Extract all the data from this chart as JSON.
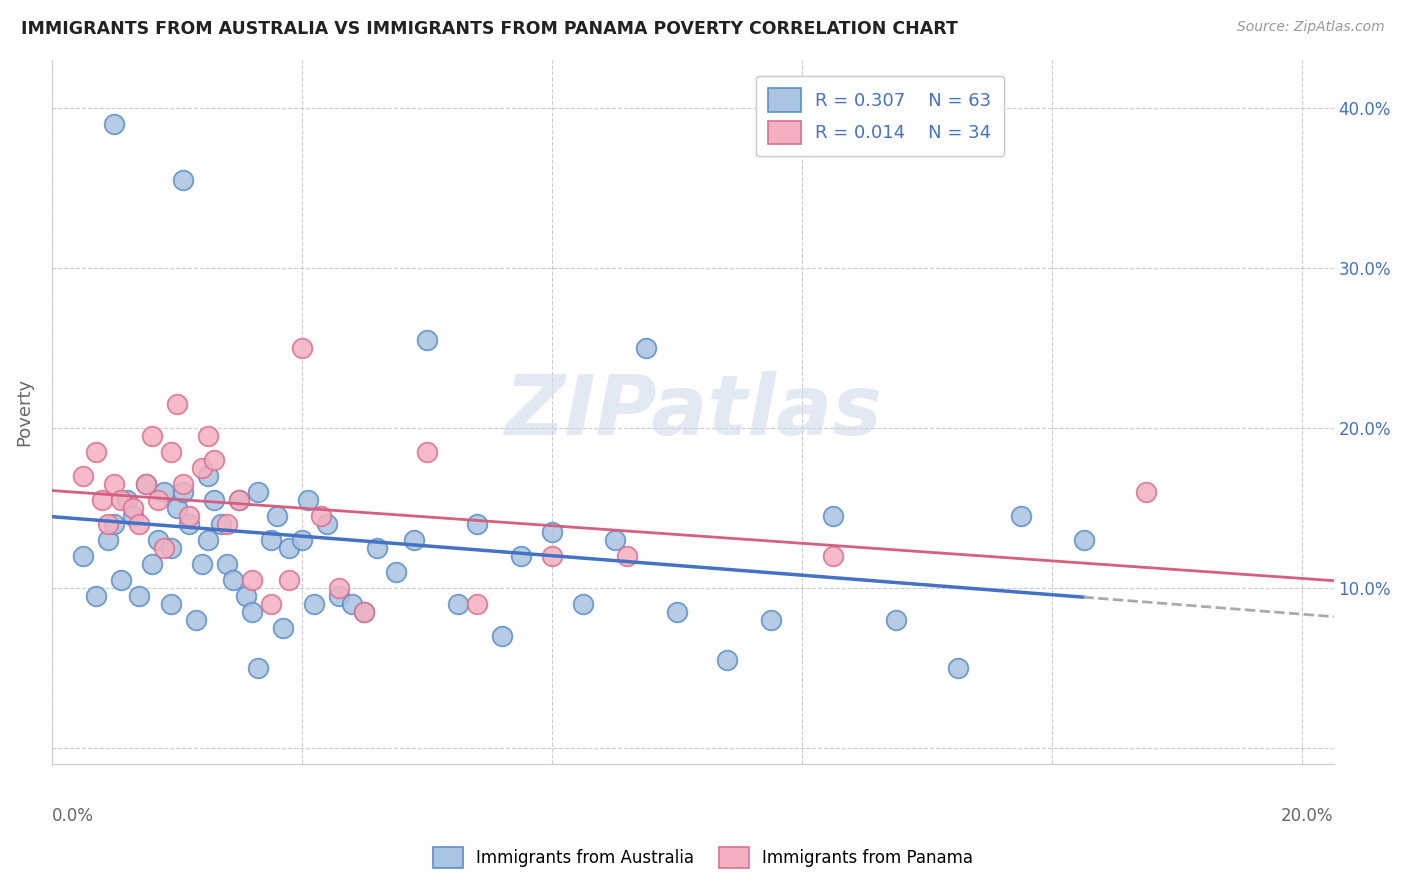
{
  "title": "IMMIGRANTS FROM AUSTRALIA VS IMMIGRANTS FROM PANAMA POVERTY CORRELATION CHART",
  "source": "Source: ZipAtlas.com",
  "ylabel": "Poverty",
  "xlim": [
    0.0,
    0.205
  ],
  "ylim": [
    -0.01,
    0.43
  ],
  "ytick_vals": [
    0.0,
    0.1,
    0.2,
    0.3,
    0.4
  ],
  "ytick_labels_right": [
    "",
    "10.0%",
    "20.0%",
    "30.0%",
    "40.0%"
  ],
  "xtick_vals": [
    0.0,
    0.04,
    0.08,
    0.12,
    0.16,
    0.2
  ],
  "color_australia": "#a8c4e0",
  "color_panama": "#f4b0c0",
  "edge_australia": "#5b8fc9",
  "edge_panama": "#d97090",
  "line_australia": "#4472c4",
  "line_panama": "#d46080",
  "line_ext_color": "#aaaaaa",
  "watermark": "ZIPatlas",
  "aus_x": [
    0.005,
    0.007,
    0.009,
    0.01,
    0.011,
    0.012,
    0.013,
    0.014,
    0.015,
    0.016,
    0.017,
    0.018,
    0.019,
    0.019,
    0.02,
    0.021,
    0.022,
    0.023,
    0.024,
    0.025,
    0.025,
    0.026,
    0.027,
    0.028,
    0.029,
    0.03,
    0.031,
    0.032,
    0.033,
    0.035,
    0.036,
    0.037,
    0.038,
    0.04,
    0.041,
    0.042,
    0.044,
    0.046,
    0.048,
    0.05,
    0.052,
    0.055,
    0.058,
    0.06,
    0.065,
    0.068,
    0.072,
    0.075,
    0.08,
    0.085,
    0.09,
    0.095,
    0.1,
    0.108,
    0.115,
    0.125,
    0.135,
    0.145,
    0.155,
    0.165,
    0.01,
    0.021,
    0.033
  ],
  "aus_y": [
    0.12,
    0.095,
    0.13,
    0.14,
    0.105,
    0.155,
    0.145,
    0.095,
    0.165,
    0.115,
    0.13,
    0.16,
    0.125,
    0.09,
    0.15,
    0.16,
    0.14,
    0.08,
    0.115,
    0.13,
    0.17,
    0.155,
    0.14,
    0.115,
    0.105,
    0.155,
    0.095,
    0.085,
    0.16,
    0.13,
    0.145,
    0.075,
    0.125,
    0.13,
    0.155,
    0.09,
    0.14,
    0.095,
    0.09,
    0.085,
    0.125,
    0.11,
    0.13,
    0.255,
    0.09,
    0.14,
    0.07,
    0.12,
    0.135,
    0.09,
    0.13,
    0.25,
    0.085,
    0.055,
    0.08,
    0.145,
    0.08,
    0.05,
    0.145,
    0.13,
    0.39,
    0.355,
    0.05
  ],
  "pan_x": [
    0.005,
    0.007,
    0.008,
    0.009,
    0.01,
    0.011,
    0.013,
    0.014,
    0.015,
    0.016,
    0.017,
    0.018,
    0.019,
    0.02,
    0.021,
    0.022,
    0.024,
    0.025,
    0.026,
    0.028,
    0.03,
    0.032,
    0.035,
    0.038,
    0.04,
    0.043,
    0.046,
    0.05,
    0.06,
    0.068,
    0.08,
    0.092,
    0.125,
    0.175
  ],
  "pan_y": [
    0.17,
    0.185,
    0.155,
    0.14,
    0.165,
    0.155,
    0.15,
    0.14,
    0.165,
    0.195,
    0.155,
    0.125,
    0.185,
    0.215,
    0.165,
    0.145,
    0.175,
    0.195,
    0.18,
    0.14,
    0.155,
    0.105,
    0.09,
    0.105,
    0.25,
    0.145,
    0.1,
    0.085,
    0.185,
    0.09,
    0.12,
    0.12,
    0.12,
    0.16
  ]
}
